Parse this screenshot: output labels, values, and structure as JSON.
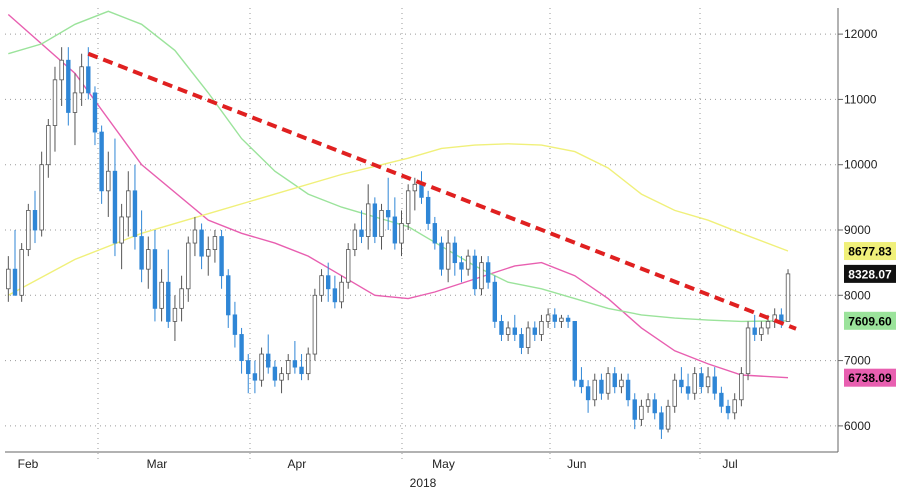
{
  "chart_data": {
    "type": "candlestick",
    "year_label": "2018",
    "x_ticks": [
      "Feb",
      "Mar",
      "Apr",
      "May",
      "Jun",
      "Jul"
    ],
    "ylim": [
      5600,
      12400
    ],
    "y_ticks": [
      6000,
      7000,
      8000,
      9000,
      10000,
      11000,
      12000
    ],
    "grid": true,
    "colors": {
      "up": "#555555",
      "down": "#2f86d6",
      "ma_short": "#e85fb0",
      "ma_mid": "#9be39b",
      "ma_long": "#f0f07a",
      "trend": "#e02020"
    },
    "trend_line": {
      "from": {
        "day": 12,
        "value": 11700
      },
      "to": {
        "day": 117,
        "value": 7580
      }
    },
    "candles": [
      [
        0,
        8100,
        8600,
        7900,
        8400
      ],
      [
        1,
        8400,
        9000,
        8000,
        8000
      ],
      [
        2,
        8000,
        8800,
        7900,
        8700
      ],
      [
        3,
        8700,
        9400,
        8600,
        9300
      ],
      [
        4,
        9300,
        9600,
        8800,
        9000
      ],
      [
        5,
        9000,
        10200,
        8900,
        10000
      ],
      [
        6,
        10000,
        10700,
        9800,
        10600
      ],
      [
        7,
        10600,
        11500,
        10200,
        11300
      ],
      [
        8,
        11300,
        11800,
        10900,
        11600
      ],
      [
        9,
        11600,
        11800,
        10600,
        10800
      ],
      [
        10,
        10800,
        11400,
        10300,
        11100
      ],
      [
        11,
        11100,
        11700,
        10900,
        11500
      ],
      [
        12,
        11500,
        11800,
        11000,
        11100
      ],
      [
        13,
        11100,
        11200,
        10300,
        10500
      ],
      [
        14,
        10500,
        10600,
        9400,
        9600
      ],
      [
        15,
        9600,
        10200,
        9200,
        9900
      ],
      [
        16,
        9900,
        10400,
        8600,
        8800
      ],
      [
        17,
        8800,
        9400,
        8400,
        9200
      ],
      [
        18,
        9200,
        9900,
        8900,
        9600
      ],
      [
        19,
        9600,
        10000,
        8700,
        8900
      ],
      [
        20,
        8900,
        9300,
        8200,
        8400
      ],
      [
        21,
        8400,
        8900,
        8100,
        8700
      ],
      [
        22,
        8700,
        9000,
        7600,
        7800
      ],
      [
        23,
        7800,
        8400,
        7600,
        8200
      ],
      [
        24,
        8200,
        8700,
        7500,
        7600
      ],
      [
        25,
        7600,
        8000,
        7300,
        7800
      ],
      [
        26,
        7800,
        8300,
        7600,
        8100
      ],
      [
        27,
        8100,
        8900,
        7900,
        8800
      ],
      [
        28,
        8800,
        9200,
        8600,
        9000
      ],
      [
        29,
        9000,
        9100,
        8400,
        8600
      ],
      [
        30,
        8600,
        8900,
        8300,
        8700
      ],
      [
        31,
        8700,
        9000,
        8500,
        8900
      ],
      [
        32,
        8900,
        9000,
        8100,
        8300
      ],
      [
        33,
        8300,
        8400,
        7500,
        7700
      ],
      [
        34,
        7700,
        7900,
        7200,
        7400
      ],
      [
        35,
        7400,
        7500,
        6800,
        7000
      ],
      [
        36,
        7000,
        7100,
        6500,
        6800
      ],
      [
        37,
        6800,
        7000,
        6500,
        6700
      ],
      [
        38,
        6700,
        7200,
        6600,
        7100
      ],
      [
        39,
        7100,
        7400,
        6800,
        6900
      ],
      [
        40,
        6900,
        7000,
        6600,
        6700
      ],
      [
        41,
        6700,
        6900,
        6500,
        6800
      ],
      [
        42,
        6800,
        7100,
        6700,
        7000
      ],
      [
        43,
        7000,
        7300,
        6800,
        6900
      ],
      [
        44,
        6900,
        7100,
        6700,
        6800
      ],
      [
        45,
        6800,
        7200,
        6700,
        7100
      ],
      [
        46,
        7100,
        8100,
        7000,
        8000
      ],
      [
        47,
        8000,
        8400,
        7900,
        8300
      ],
      [
        48,
        8300,
        8500,
        7900,
        8100
      ],
      [
        49,
        8100,
        8300,
        7800,
        7900
      ],
      [
        50,
        7900,
        8300,
        7800,
        8200
      ],
      [
        51,
        8200,
        8800,
        8100,
        8700
      ],
      [
        52,
        8700,
        9100,
        8600,
        9000
      ],
      [
        53,
        9000,
        9300,
        8800,
        8900
      ],
      [
        54,
        8900,
        9700,
        8700,
        9400
      ],
      [
        55,
        9400,
        9500,
        8800,
        8900
      ],
      [
        56,
        8900,
        9400,
        8700,
        9300
      ],
      [
        57,
        9300,
        9800,
        9000,
        9200
      ],
      [
        58,
        9200,
        9500,
        8700,
        8800
      ],
      [
        59,
        8800,
        9300,
        8600,
        9100
      ],
      [
        60,
        9100,
        9700,
        9000,
        9600
      ],
      [
        61,
        9600,
        9800,
        9300,
        9700
      ],
      [
        62,
        9700,
        9900,
        9400,
        9500
      ],
      [
        63,
        9500,
        9600,
        9000,
        9100
      ],
      [
        64,
        9100,
        9200,
        8700,
        8800
      ],
      [
        65,
        8800,
        8900,
        8300,
        8400
      ],
      [
        66,
        8400,
        9000,
        8200,
        8800
      ],
      [
        67,
        8800,
        8900,
        8300,
        8500
      ],
      [
        68,
        8500,
        8600,
        8200,
        8400
      ],
      [
        69,
        8400,
        8700,
        8300,
        8600
      ],
      [
        70,
        8600,
        8700,
        8000,
        8100
      ],
      [
        71,
        8100,
        8600,
        8000,
        8500
      ],
      [
        72,
        8500,
        8600,
        8100,
        8200
      ],
      [
        73,
        8200,
        8300,
        7500,
        7600
      ],
      [
        74,
        7600,
        7700,
        7300,
        7400
      ],
      [
        75,
        7400,
        7600,
        7300,
        7500
      ],
      [
        76,
        7500,
        7700,
        7300,
        7400
      ],
      [
        77,
        7400,
        7500,
        7100,
        7200
      ],
      [
        78,
        7200,
        7600,
        7100,
        7500
      ],
      [
        79,
        7500,
        7600,
        7300,
        7400
      ],
      [
        80,
        7400,
        7700,
        7300,
        7600
      ],
      [
        81,
        7600,
        7800,
        7500,
        7700
      ],
      [
        82,
        7700,
        7800,
        7500,
        7600
      ],
      [
        83,
        7600,
        7700,
        7500,
        7650
      ],
      [
        84,
        7650,
        7700,
        7500,
        7600
      ],
      [
        85,
        7600,
        7600,
        6600,
        6700
      ],
      [
        86,
        6700,
        6900,
        6500,
        6600
      ],
      [
        87,
        6600,
        6700,
        6200,
        6400
      ],
      [
        88,
        6400,
        6800,
        6300,
        6700
      ],
      [
        89,
        6700,
        6800,
        6400,
        6500
      ],
      [
        90,
        6500,
        6900,
        6400,
        6800
      ],
      [
        91,
        6800,
        6900,
        6500,
        6600
      ],
      [
        92,
        6600,
        6800,
        6500,
        6700
      ],
      [
        93,
        6700,
        6800,
        6300,
        6400
      ],
      [
        94,
        6400,
        6500,
        5950,
        6100
      ],
      [
        95,
        6100,
        6400,
        6000,
        6300
      ],
      [
        96,
        6300,
        6500,
        6200,
        6400
      ],
      [
        97,
        6400,
        6500,
        6100,
        6200
      ],
      [
        98,
        6200,
        6300,
        5800,
        5950
      ],
      [
        99,
        5950,
        6400,
        5900,
        6300
      ],
      [
        100,
        6300,
        6800,
        6200,
        6700
      ],
      [
        101,
        6700,
        6900,
        6500,
        6600
      ],
      [
        102,
        6600,
        6800,
        6400,
        6500
      ],
      [
        103,
        6500,
        6900,
        6400,
        6800
      ],
      [
        104,
        6800,
        6900,
        6500,
        6600
      ],
      [
        105,
        6600,
        6900,
        6500,
        6750
      ],
      [
        106,
        6750,
        6900,
        6400,
        6500
      ],
      [
        107,
        6500,
        6600,
        6200,
        6300
      ],
      [
        108,
        6300,
        6400,
        6100,
        6200
      ],
      [
        109,
        6200,
        6500,
        6100,
        6400
      ],
      [
        110,
        6400,
        6900,
        6300,
        6800
      ],
      [
        111,
        6800,
        7600,
        6700,
        7500
      ],
      [
        112,
        7500,
        7700,
        7300,
        7400
      ],
      [
        113,
        7400,
        7600,
        7300,
        7500
      ],
      [
        114,
        7500,
        7700,
        7400,
        7600
      ],
      [
        115,
        7600,
        7800,
        7500,
        7700
      ],
      [
        116,
        7700,
        7800,
        7500,
        7600
      ],
      [
        117,
        7600,
        8400,
        7600,
        8328
      ]
    ],
    "series": [
      {
        "name": "",
        "role": "ma_short",
        "points": [
          [
            0,
            12300
          ],
          [
            10,
            11400
          ],
          [
            20,
            10000
          ],
          [
            30,
            9150
          ],
          [
            35,
            8950
          ],
          [
            40,
            8800
          ],
          [
            45,
            8600
          ],
          [
            50,
            8300
          ],
          [
            55,
            8000
          ],
          [
            60,
            7950
          ],
          [
            64,
            8050
          ],
          [
            70,
            8250
          ],
          [
            76,
            8450
          ],
          [
            80,
            8500
          ],
          [
            85,
            8300
          ],
          [
            90,
            7950
          ],
          [
            95,
            7500
          ],
          [
            100,
            7150
          ],
          [
            105,
            6950
          ],
          [
            110,
            6780
          ],
          [
            117,
            6738.09
          ]
        ]
      },
      {
        "name": "",
        "role": "ma_mid",
        "points": [
          [
            0,
            11700
          ],
          [
            5,
            11850
          ],
          [
            10,
            12150
          ],
          [
            15,
            12350
          ],
          [
            20,
            12150
          ],
          [
            25,
            11750
          ],
          [
            30,
            11100
          ],
          [
            35,
            10400
          ],
          [
            40,
            9900
          ],
          [
            45,
            9550
          ],
          [
            50,
            9350
          ],
          [
            55,
            9200
          ],
          [
            60,
            9050
          ],
          [
            65,
            8750
          ],
          [
            70,
            8450
          ],
          [
            75,
            8200
          ],
          [
            80,
            8100
          ],
          [
            85,
            7950
          ],
          [
            90,
            7800
          ],
          [
            95,
            7700
          ],
          [
            100,
            7650
          ],
          [
            105,
            7620
          ],
          [
            110,
            7600
          ],
          [
            117,
            7609.6
          ]
        ]
      },
      {
        "name": "",
        "role": "ma_long",
        "points": [
          [
            0,
            8000
          ],
          [
            10,
            8550
          ],
          [
            20,
            8950
          ],
          [
            30,
            9250
          ],
          [
            40,
            9550
          ],
          [
            50,
            9850
          ],
          [
            60,
            10100
          ],
          [
            65,
            10250
          ],
          [
            70,
            10300
          ],
          [
            75,
            10320
          ],
          [
            80,
            10300
          ],
          [
            85,
            10200
          ],
          [
            90,
            9950
          ],
          [
            95,
            9550
          ],
          [
            100,
            9300
          ],
          [
            105,
            9150
          ],
          [
            110,
            8950
          ],
          [
            117,
            8677.83
          ]
        ]
      }
    ],
    "value_tags": [
      {
        "label": "8677.83",
        "value": 8677.83,
        "bg": "#f0f07a",
        "fg": "#000000"
      },
      {
        "label": "8328.07",
        "value": 8328.07,
        "bg": "#111111",
        "fg": "#ffffff"
      },
      {
        "label": "7609.60",
        "value": 7609.6,
        "bg": "#9be39b",
        "fg": "#000000"
      },
      {
        "label": "6738.09",
        "value": 6738.09,
        "bg": "#e85fb0",
        "fg": "#000000"
      }
    ]
  }
}
